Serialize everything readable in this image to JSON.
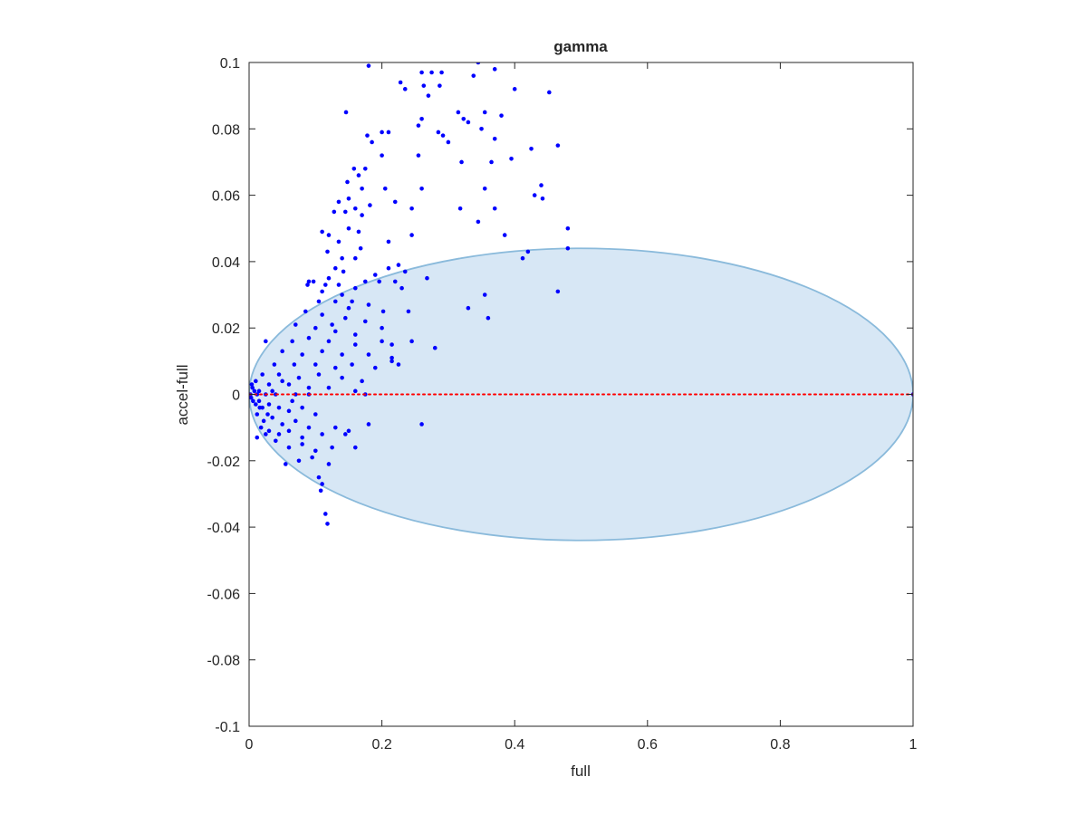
{
  "chart_data": {
    "type": "scatter",
    "title": "gamma",
    "xlabel": "full",
    "ylabel": "accel-full",
    "xlim": [
      0,
      1
    ],
    "ylim": [
      -0.1,
      0.1
    ],
    "x_ticks": [
      0,
      0.2,
      0.4,
      0.6,
      0.8,
      1
    ],
    "x_tick_labels": [
      "0",
      "0.2",
      "0.4",
      "0.6",
      "0.8",
      "1"
    ],
    "y_ticks": [
      -0.1,
      -0.08,
      -0.06,
      -0.04,
      -0.02,
      0,
      0.02,
      0.04,
      0.06,
      0.08,
      0.1
    ],
    "y_tick_labels": [
      "-0.1",
      "-0.08",
      "-0.06",
      "-0.04",
      "-0.02",
      "0",
      "0.02",
      "0.04",
      "0.06",
      "0.08",
      "0.1"
    ],
    "grid": false,
    "box": true,
    "series": [
      {
        "style": "points",
        "color": "#0000ff",
        "points": [
          [
            0.18,
            0.099
          ],
          [
            0.228,
            0.094
          ],
          [
            0.235,
            0.092
          ],
          [
            0.26,
            0.097
          ],
          [
            0.263,
            0.093
          ],
          [
            0.275,
            0.097
          ],
          [
            0.27,
            0.09
          ],
          [
            0.29,
            0.097
          ],
          [
            0.287,
            0.093
          ],
          [
            0.345,
            0.1
          ],
          [
            0.37,
            0.098
          ],
          [
            0.338,
            0.096
          ],
          [
            0.4,
            0.092
          ],
          [
            0.452,
            0.091
          ],
          [
            0.146,
            0.085
          ],
          [
            0.26,
            0.083
          ],
          [
            0.255,
            0.081
          ],
          [
            0.315,
            0.085
          ],
          [
            0.323,
            0.083
          ],
          [
            0.33,
            0.082
          ],
          [
            0.355,
            0.085
          ],
          [
            0.38,
            0.084
          ],
          [
            0.465,
            0.075
          ],
          [
            0.2,
            0.079
          ],
          [
            0.21,
            0.079
          ],
          [
            0.178,
            0.078
          ],
          [
            0.185,
            0.076
          ],
          [
            0.292,
            0.078
          ],
          [
            0.3,
            0.076
          ],
          [
            0.285,
            0.079
          ],
          [
            0.35,
            0.08
          ],
          [
            0.37,
            0.077
          ],
          [
            0.395,
            0.071
          ],
          [
            0.425,
            0.074
          ],
          [
            0.158,
            0.068
          ],
          [
            0.165,
            0.066
          ],
          [
            0.2,
            0.072
          ],
          [
            0.255,
            0.072
          ],
          [
            0.32,
            0.07
          ],
          [
            0.365,
            0.07
          ],
          [
            0.148,
            0.064
          ],
          [
            0.175,
            0.068
          ],
          [
            0.17,
            0.062
          ],
          [
            0.205,
            0.062
          ],
          [
            0.26,
            0.062
          ],
          [
            0.355,
            0.062
          ],
          [
            0.44,
            0.063
          ],
          [
            0.43,
            0.06
          ],
          [
            0.135,
            0.058
          ],
          [
            0.15,
            0.059
          ],
          [
            0.16,
            0.056
          ],
          [
            0.145,
            0.055
          ],
          [
            0.17,
            0.054
          ],
          [
            0.128,
            0.055
          ],
          [
            0.22,
            0.058
          ],
          [
            0.245,
            0.056
          ],
          [
            0.182,
            0.057
          ],
          [
            0.318,
            0.056
          ],
          [
            0.37,
            0.056
          ],
          [
            0.442,
            0.059
          ],
          [
            0.345,
            0.052
          ],
          [
            0.48,
            0.05
          ],
          [
            0.11,
            0.049
          ],
          [
            0.12,
            0.048
          ],
          [
            0.15,
            0.05
          ],
          [
            0.165,
            0.049
          ],
          [
            0.135,
            0.046
          ],
          [
            0.168,
            0.044
          ],
          [
            0.21,
            0.046
          ],
          [
            0.245,
            0.048
          ],
          [
            0.385,
            0.048
          ],
          [
            0.118,
            0.043
          ],
          [
            0.14,
            0.041
          ],
          [
            0.16,
            0.041
          ],
          [
            0.225,
            0.039
          ],
          [
            0.412,
            0.041
          ],
          [
            0.268,
            0.035
          ],
          [
            0.42,
            0.043
          ],
          [
            0.48,
            0.044
          ],
          [
            0.13,
            0.038
          ],
          [
            0.142,
            0.037
          ],
          [
            0.19,
            0.036
          ],
          [
            0.21,
            0.038
          ],
          [
            0.235,
            0.037
          ],
          [
            0.12,
            0.035
          ],
          [
            0.097,
            0.034
          ],
          [
            0.115,
            0.033
          ],
          [
            0.135,
            0.033
          ],
          [
            0.16,
            0.032
          ],
          [
            0.175,
            0.034
          ],
          [
            0.196,
            0.034
          ],
          [
            0.09,
            0.034
          ],
          [
            0.11,
            0.031
          ],
          [
            0.088,
            0.033
          ],
          [
            0.14,
            0.03
          ],
          [
            0.155,
            0.028
          ],
          [
            0.23,
            0.032
          ],
          [
            0.22,
            0.034
          ],
          [
            0.105,
            0.028
          ],
          [
            0.13,
            0.028
          ],
          [
            0.15,
            0.026
          ],
          [
            0.18,
            0.027
          ],
          [
            0.202,
            0.025
          ],
          [
            0.24,
            0.025
          ],
          [
            0.465,
            0.031
          ],
          [
            0.355,
            0.03
          ],
          [
            0.33,
            0.026
          ],
          [
            0.36,
            0.023
          ],
          [
            0.085,
            0.025
          ],
          [
            0.11,
            0.024
          ],
          [
            0.125,
            0.021
          ],
          [
            0.145,
            0.023
          ],
          [
            0.175,
            0.022
          ],
          [
            0.07,
            0.021
          ],
          [
            0.1,
            0.02
          ],
          [
            0.13,
            0.019
          ],
          [
            0.16,
            0.018
          ],
          [
            0.2,
            0.02
          ],
          [
            0.065,
            0.016
          ],
          [
            0.09,
            0.017
          ],
          [
            0.12,
            0.016
          ],
          [
            0.16,
            0.015
          ],
          [
            0.2,
            0.016
          ],
          [
            0.215,
            0.015
          ],
          [
            0.245,
            0.016
          ],
          [
            0.025,
            0.016
          ],
          [
            0.05,
            0.013
          ],
          [
            0.08,
            0.012
          ],
          [
            0.11,
            0.013
          ],
          [
            0.14,
            0.012
          ],
          [
            0.18,
            0.012
          ],
          [
            0.215,
            0.011
          ],
          [
            0.28,
            0.014
          ],
          [
            0.038,
            0.009
          ],
          [
            0.068,
            0.009
          ],
          [
            0.1,
            0.009
          ],
          [
            0.13,
            0.008
          ],
          [
            0.155,
            0.009
          ],
          [
            0.19,
            0.008
          ],
          [
            0.225,
            0.009
          ],
          [
            0.215,
            0.01
          ],
          [
            0.02,
            0.006
          ],
          [
            0.045,
            0.006
          ],
          [
            0.075,
            0.005
          ],
          [
            0.105,
            0.006
          ],
          [
            0.14,
            0.005
          ],
          [
            0.17,
            0.004
          ],
          [
            0.01,
            0.004
          ],
          [
            0.03,
            0.003
          ],
          [
            0.06,
            0.003
          ],
          [
            0.09,
            0.002
          ],
          [
            0.12,
            0.002
          ],
          [
            0.16,
            0.001
          ],
          [
            0.005,
            0.002
          ],
          [
            0.015,
            0.001
          ],
          [
            0.025,
            0.0
          ],
          [
            0.04,
            0.0
          ],
          [
            0.07,
            0.0
          ],
          [
            0.09,
            0.0
          ],
          [
            0.175,
            0.0
          ],
          [
            0.002,
            0.0
          ],
          [
            0.003,
            -0.001
          ],
          [
            0.006,
            -0.002
          ],
          [
            0.01,
            -0.003
          ],
          [
            0.015,
            -0.002
          ],
          [
            0.02,
            -0.004
          ],
          [
            0.03,
            -0.003
          ],
          [
            0.045,
            -0.004
          ],
          [
            0.06,
            -0.005
          ],
          [
            0.08,
            -0.004
          ],
          [
            0.1,
            -0.006
          ],
          [
            0.012,
            -0.006
          ],
          [
            0.022,
            -0.008
          ],
          [
            0.035,
            -0.007
          ],
          [
            0.05,
            -0.009
          ],
          [
            0.07,
            -0.008
          ],
          [
            0.09,
            -0.01
          ],
          [
            0.018,
            -0.01
          ],
          [
            0.03,
            -0.011
          ],
          [
            0.045,
            -0.012
          ],
          [
            0.06,
            -0.011
          ],
          [
            0.08,
            -0.013
          ],
          [
            0.11,
            -0.012
          ],
          [
            0.13,
            -0.01
          ],
          [
            0.15,
            -0.011
          ],
          [
            0.04,
            -0.014
          ],
          [
            0.06,
            -0.016
          ],
          [
            0.08,
            -0.015
          ],
          [
            0.1,
            -0.017
          ],
          [
            0.125,
            -0.016
          ],
          [
            0.075,
            -0.02
          ],
          [
            0.095,
            -0.019
          ],
          [
            0.055,
            -0.021
          ],
          [
            0.12,
            -0.021
          ],
          [
            0.105,
            -0.025
          ],
          [
            0.11,
            -0.027
          ],
          [
            0.108,
            -0.029
          ],
          [
            0.115,
            -0.036
          ],
          [
            0.118,
            -0.039
          ],
          [
            0.18,
            -0.009
          ],
          [
            0.26,
            -0.009
          ],
          [
            0.16,
            -0.016
          ],
          [
            0.145,
            -0.012
          ],
          [
            0.008,
            0.001
          ],
          [
            0.004,
            0.003
          ],
          [
            0.012,
            0.0
          ],
          [
            0.016,
            -0.004
          ],
          [
            0.028,
            -0.006
          ],
          [
            0.035,
            0.001
          ],
          [
            0.05,
            0.004
          ],
          [
            0.065,
            -0.002
          ],
          [
            0.012,
            -0.013
          ],
          [
            0.025,
            -0.012
          ],
          [
            1.0,
            0.0
          ]
        ]
      },
      {
        "style": "dotted-line",
        "color": "#ff0000",
        "points": [
          [
            0,
            0
          ],
          [
            1,
            0
          ]
        ]
      }
    ],
    "annotations": [
      {
        "shape": "ellipse",
        "center": [
          0.5,
          0
        ],
        "semi_axes": [
          0.5,
          0.044
        ],
        "fill": "#d7e7f5",
        "stroke": "#8abadb"
      }
    ]
  }
}
